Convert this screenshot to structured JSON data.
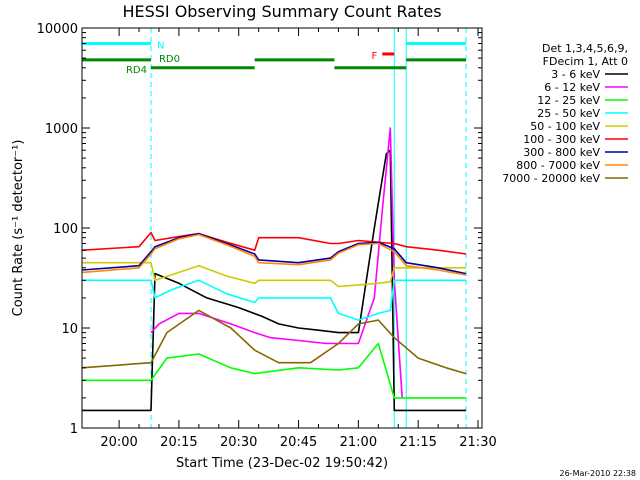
{
  "chart_data": {
    "type": "line",
    "title": "HESSI Observing Summary Count Rates",
    "xlabel": "Start Time (23-Dec-02 19:50:42)",
    "ylabel": "Count Rate (s⁻¹ detector⁻¹)",
    "timestamp": "26-Mar-2010 22:38",
    "y_scale": "log",
    "ylim": [
      1,
      10000
    ],
    "xlim": [
      "19:50:42",
      "21:31:00"
    ],
    "x_ticks": [
      "20:00",
      "20:15",
      "20:30",
      "20:45",
      "21:00",
      "21:15",
      "21:30"
    ],
    "y_ticks": [
      "1",
      "10",
      "100",
      "1000",
      "10000"
    ],
    "legend_placement": "right",
    "legend_header": [
      "Det 1,3,4,5,6,9,",
      "FDecim 1, Att 0"
    ],
    "series": [
      {
        "name": "3 - 6 keV",
        "color": "#000000",
        "x": [
          "19:50:42",
          "20:08",
          "20:09",
          "20:15",
          "20:22",
          "20:30",
          "20:36",
          "20:40",
          "20:45",
          "20:50",
          "20:55",
          "21:00",
          "21:04",
          "21:07",
          "21:08",
          "21:09",
          "21:11",
          "21:13",
          "21:18",
          "21:22",
          "21:27"
        ],
        "y": [
          1.5,
          1.5,
          35,
          28,
          20,
          16,
          13,
          11,
          10,
          9.5,
          9,
          9,
          100,
          550,
          600,
          1.5,
          1.5,
          1.5,
          1.5,
          1.5,
          1.5
        ]
      },
      {
        "name": "6 - 12 keV",
        "color": "#ff00ff",
        "x": [
          "20:08",
          "20:10",
          "20:15",
          "20:20",
          "20:28",
          "20:34",
          "20:38",
          "20:45",
          "20:52",
          "20:57",
          "21:00",
          "21:04",
          "21:06",
          "21:08",
          "21:09",
          "21:11"
        ],
        "y": [
          9,
          11,
          14,
          14,
          11,
          9,
          8,
          7.5,
          7,
          7,
          7,
          20,
          150,
          1000,
          30,
          2
        ]
      },
      {
        "name": "12 - 25 keV",
        "color": "#00ff00",
        "x": [
          "19:50:42",
          "20:08",
          "20:12",
          "20:20",
          "20:28",
          "20:34",
          "20:45",
          "20:55",
          "21:00",
          "21:05",
          "21:09",
          "21:11",
          "21:15",
          "21:20",
          "21:27"
        ],
        "y": [
          3,
          3,
          5,
          5.5,
          4,
          3.5,
          4,
          3.8,
          4,
          7,
          2,
          2,
          2,
          2,
          2
        ]
      },
      {
        "name": "25 - 50 keV",
        "color": "#00ffff",
        "x": [
          "19:50:42",
          "20:08",
          "20:09",
          "20:13",
          "20:20",
          "20:27",
          "20:34",
          "20:35",
          "20:45",
          "20:53",
          "20:55",
          "21:00",
          "21:05",
          "21:08",
          "21:09",
          "21:12",
          "21:15",
          "21:22",
          "21:27"
        ],
        "y": [
          30,
          30,
          20,
          24,
          30,
          22,
          18,
          20,
          20,
          20,
          14,
          12,
          14,
          15,
          30,
          30,
          30,
          30,
          30
        ]
      },
      {
        "name": "50 - 100 keV",
        "color": "#cccc00",
        "x": [
          "19:50:42",
          "20:08",
          "20:09",
          "20:15",
          "20:20",
          "20:27",
          "20:34",
          "20:35",
          "20:45",
          "20:53",
          "20:55",
          "21:00",
          "21:05",
          "21:08",
          "21:09",
          "21:12",
          "21:15",
          "21:22",
          "21:27"
        ],
        "y": [
          45,
          45,
          30,
          36,
          42,
          33,
          28,
          30,
          30,
          30,
          26,
          27,
          28,
          29,
          40,
          40,
          40,
          40,
          40
        ]
      },
      {
        "name": "100 - 300 keV",
        "color": "#ff0000",
        "x": [
          "19:50:42",
          "20:05",
          "20:08",
          "20:09",
          "20:15",
          "20:20",
          "20:27",
          "20:34",
          "20:35",
          "20:45",
          "20:53",
          "20:55",
          "21:00",
          "21:05",
          "21:09",
          "21:12",
          "21:20",
          "21:27"
        ],
        "y": [
          60,
          65,
          90,
          75,
          82,
          88,
          72,
          60,
          80,
          80,
          70,
          70,
          75,
          72,
          70,
          65,
          60,
          55
        ]
      },
      {
        "name": "300 - 800 keV",
        "color": "#0000aa",
        "x": [
          "19:50:42",
          "20:05",
          "20:08",
          "20:09",
          "20:15",
          "20:20",
          "20:27",
          "20:34",
          "20:35",
          "20:45",
          "20:53",
          "20:55",
          "21:00",
          "21:05",
          "21:09",
          "21:12",
          "21:20",
          "21:27"
        ],
        "y": [
          38,
          42,
          58,
          65,
          80,
          88,
          70,
          55,
          48,
          45,
          50,
          58,
          70,
          72,
          62,
          45,
          40,
          35
        ]
      },
      {
        "name": "800 - 7000 keV",
        "color": "#ff8800",
        "x": [
          "19:50:42",
          "20:05",
          "20:08",
          "20:09",
          "20:15",
          "20:20",
          "20:27",
          "20:34",
          "20:35",
          "20:45",
          "20:53",
          "20:55",
          "21:00",
          "21:05",
          "21:09",
          "21:12",
          "21:20",
          "21:27"
        ],
        "y": [
          36,
          40,
          55,
          62,
          78,
          86,
          68,
          52,
          45,
          43,
          48,
          56,
          68,
          70,
          58,
          42,
          38,
          34
        ]
      },
      {
        "name": "7000 - 20000 keV",
        "color": "#886600",
        "x": [
          "19:50:42",
          "20:08",
          "20:12",
          "20:20",
          "20:28",
          "20:34",
          "20:40",
          "20:48",
          "20:55",
          "21:00",
          "21:05",
          "21:09",
          "21:15",
          "21:22",
          "21:27"
        ],
        "y": [
          4,
          4.5,
          9,
          15,
          10,
          6,
          4.5,
          4.5,
          7,
          11,
          12,
          8,
          5,
          4,
          3.5
        ]
      }
    ],
    "bars": [
      {
        "label": "N",
        "color": "#00ffff",
        "level": 7000,
        "x": [
          [
            "19:50:42",
            "20:08"
          ],
          [
            "21:12",
            "21:27"
          ]
        ]
      },
      {
        "label": "RD4",
        "color": "#008800",
        "level": 4800,
        "x": [
          [
            "19:50:42",
            "20:08"
          ]
        ]
      },
      {
        "label": "RD0",
        "color": "#008800",
        "level": 4000,
        "x": [
          [
            "20:08",
            "20:34"
          ],
          [
            "20:54",
            "21:12"
          ]
        ]
      },
      {
        "label": "",
        "color": "#008800",
        "level": 4800,
        "x": [
          [
            "20:34",
            "20:54"
          ],
          [
            "21:12",
            "21:27"
          ]
        ]
      },
      {
        "label": "F",
        "color": "#ff0000",
        "level": 5500,
        "x": [
          [
            "21:06",
            "21:09"
          ]
        ]
      }
    ],
    "vlines": [
      {
        "color": "#00ffff",
        "style": "dashed",
        "x": "20:08"
      },
      {
        "color": "#00ffff",
        "style": "solid",
        "x": "21:09"
      },
      {
        "color": "#00ffff",
        "style": "solid",
        "x": "21:12"
      },
      {
        "color": "#00ffff",
        "style": "dashed",
        "x": "21:27"
      }
    ]
  }
}
